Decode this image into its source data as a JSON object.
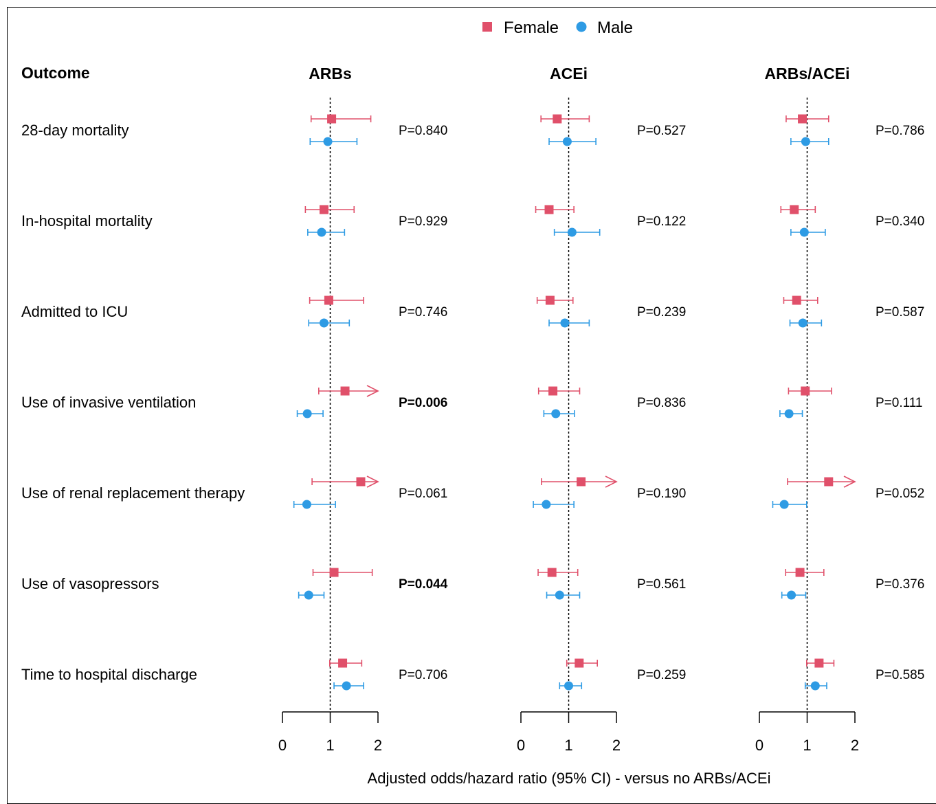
{
  "chart_data": {
    "type": "forest",
    "legend": {
      "placement": "top-center",
      "entries": [
        {
          "name": "Female",
          "marker": "square",
          "color": "#E0506A"
        },
        {
          "name": "Male",
          "marker": "circle",
          "color": "#2E9BE4"
        }
      ]
    },
    "outcome_header": "Outcome",
    "xlabel": "Adjusted odds/hazard ratio (95% CI) - versus no ARBs/ACEi",
    "xlim": [
      0,
      2
    ],
    "x_ticks": [
      "0",
      "1",
      "2"
    ],
    "reference_line": 1,
    "panels": [
      {
        "title": "ARBs",
        "rows": [
          {
            "female": {
              "est": 1.03,
              "lo": 0.6,
              "hi": 1.85,
              "arrow": false
            },
            "male": {
              "est": 0.95,
              "lo": 0.58,
              "hi": 1.56,
              "arrow": false
            },
            "p": "P=0.840",
            "bold": false
          },
          {
            "female": {
              "est": 0.87,
              "lo": 0.48,
              "hi": 1.5,
              "arrow": false
            },
            "male": {
              "est": 0.82,
              "lo": 0.53,
              "hi": 1.3,
              "arrow": false
            },
            "p": "P=0.929",
            "bold": false
          },
          {
            "female": {
              "est": 0.97,
              "lo": 0.57,
              "hi": 1.7,
              "arrow": false
            },
            "male": {
              "est": 0.87,
              "lo": 0.55,
              "hi": 1.4,
              "arrow": false
            },
            "p": "P=0.746",
            "bold": false
          },
          {
            "female": {
              "est": 1.31,
              "lo": 0.76,
              "hi": 2.0,
              "arrow": true
            },
            "male": {
              "est": 0.52,
              "lo": 0.31,
              "hi": 0.85,
              "arrow": false
            },
            "p": "P=0.006",
            "bold": true
          },
          {
            "female": {
              "est": 1.64,
              "lo": 0.62,
              "hi": 2.0,
              "arrow": true
            },
            "male": {
              "est": 0.51,
              "lo": 0.24,
              "hi": 1.11,
              "arrow": false
            },
            "p": "P=0.061",
            "bold": false
          },
          {
            "female": {
              "est": 1.08,
              "lo": 0.64,
              "hi": 1.88,
              "arrow": false
            },
            "male": {
              "est": 0.55,
              "lo": 0.34,
              "hi": 0.87,
              "arrow": false
            },
            "p": "P=0.044",
            "bold": true
          },
          {
            "female": {
              "est": 1.26,
              "lo": 0.99,
              "hi": 1.66,
              "arrow": false
            },
            "male": {
              "est": 1.34,
              "lo": 1.08,
              "hi": 1.7,
              "arrow": false
            },
            "p": "P=0.706",
            "bold": false
          }
        ]
      },
      {
        "title": "ACEi",
        "rows": [
          {
            "female": {
              "est": 0.76,
              "lo": 0.42,
              "hi": 1.43,
              "arrow": false
            },
            "male": {
              "est": 0.97,
              "lo": 0.59,
              "hi": 1.57,
              "arrow": false
            },
            "p": "P=0.527",
            "bold": false
          },
          {
            "female": {
              "est": 0.59,
              "lo": 0.31,
              "hi": 1.11,
              "arrow": false
            },
            "male": {
              "est": 1.07,
              "lo": 0.7,
              "hi": 1.65,
              "arrow": false
            },
            "p": "P=0.122",
            "bold": false
          },
          {
            "female": {
              "est": 0.61,
              "lo": 0.34,
              "hi": 1.09,
              "arrow": false
            },
            "male": {
              "est": 0.92,
              "lo": 0.59,
              "hi": 1.43,
              "arrow": false
            },
            "p": "P=0.239",
            "bold": false
          },
          {
            "female": {
              "est": 0.67,
              "lo": 0.37,
              "hi": 1.23,
              "arrow": false
            },
            "male": {
              "est": 0.73,
              "lo": 0.48,
              "hi": 1.12,
              "arrow": false
            },
            "p": "P=0.836",
            "bold": false
          },
          {
            "female": {
              "est": 1.26,
              "lo": 0.43,
              "hi": 2.0,
              "arrow": true
            },
            "male": {
              "est": 0.53,
              "lo": 0.26,
              "hi": 1.11,
              "arrow": false
            },
            "p": "P=0.190",
            "bold": false
          },
          {
            "female": {
              "est": 0.65,
              "lo": 0.36,
              "hi": 1.19,
              "arrow": false
            },
            "male": {
              "est": 0.81,
              "lo": 0.54,
              "hi": 1.23,
              "arrow": false
            },
            "p": "P=0.561",
            "bold": false
          },
          {
            "female": {
              "est": 1.22,
              "lo": 0.96,
              "hi": 1.6,
              "arrow": false
            },
            "male": {
              "est": 1.0,
              "lo": 0.81,
              "hi": 1.27,
              "arrow": false
            },
            "p": "P=0.259",
            "bold": false
          }
        ]
      },
      {
        "title": "ARBs/ACEi",
        "rows": [
          {
            "female": {
              "est": 0.9,
              "lo": 0.56,
              "hi": 1.45,
              "arrow": false
            },
            "male": {
              "est": 0.97,
              "lo": 0.66,
              "hi": 1.45,
              "arrow": false
            },
            "p": "P=0.786",
            "bold": false
          },
          {
            "female": {
              "est": 0.73,
              "lo": 0.45,
              "hi": 1.17,
              "arrow": false
            },
            "male": {
              "est": 0.94,
              "lo": 0.66,
              "hi": 1.38,
              "arrow": false
            },
            "p": "P=0.340",
            "bold": false
          },
          {
            "female": {
              "est": 0.78,
              "lo": 0.51,
              "hi": 1.22,
              "arrow": false
            },
            "male": {
              "est": 0.91,
              "lo": 0.64,
              "hi": 1.3,
              "arrow": false
            },
            "p": "P=0.587",
            "bold": false
          },
          {
            "female": {
              "est": 0.96,
              "lo": 0.61,
              "hi": 1.51,
              "arrow": false
            },
            "male": {
              "est": 0.62,
              "lo": 0.43,
              "hi": 0.9,
              "arrow": false
            },
            "p": "P=0.111",
            "bold": false
          },
          {
            "female": {
              "est": 1.45,
              "lo": 0.59,
              "hi": 2.0,
              "arrow": true
            },
            "male": {
              "est": 0.52,
              "lo": 0.28,
              "hi": 0.99,
              "arrow": false
            },
            "p": "P=0.052",
            "bold": false
          },
          {
            "female": {
              "est": 0.85,
              "lo": 0.55,
              "hi": 1.35,
              "arrow": false
            },
            "male": {
              "est": 0.67,
              "lo": 0.47,
              "hi": 0.97,
              "arrow": false
            },
            "p": "P=0.376",
            "bold": false
          },
          {
            "female": {
              "est": 1.25,
              "lo": 0.99,
              "hi": 1.56,
              "arrow": false
            },
            "male": {
              "est": 1.17,
              "lo": 0.96,
              "hi": 1.41,
              "arrow": false
            },
            "p": "P=0.585",
            "bold": false
          }
        ]
      }
    ],
    "outcomes": [
      "28-day mortality",
      "In-hospital mortality",
      "Admitted to ICU",
      "Use of invasive ventilation",
      "Use of renal replacement therapy",
      "Use of vasopressors",
      "Time to hospital discharge"
    ]
  }
}
